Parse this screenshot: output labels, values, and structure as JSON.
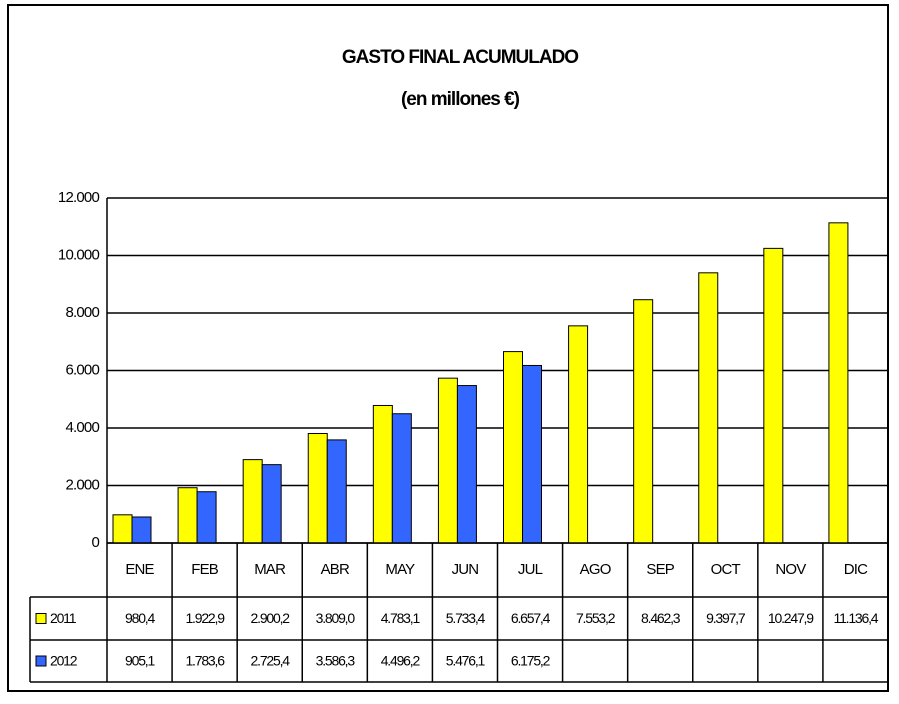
{
  "chart_data": {
    "type": "bar",
    "title": "GASTO FINAL ACUMULADO",
    "subtitle": "(en millones €)",
    "categories": [
      "ENE",
      "FEB",
      "MAR",
      "ABR",
      "MAY",
      "JUN",
      "JUL",
      "AGO",
      "SEP",
      "OCT",
      "NOV",
      "DIC"
    ],
    "series": [
      {
        "name": "2011",
        "color": "#ffff00",
        "values": [
          980.4,
          1922.9,
          2900.2,
          3809.0,
          4783.1,
          5733.4,
          6657.4,
          7553.2,
          8462.3,
          9397.7,
          10247.9,
          11136.4
        ],
        "value_labels": [
          "980,4",
          "1.922,9",
          "2.900,2",
          "3.809,0",
          "4.783,1",
          "5.733,4",
          "6.657,4",
          "7.553,2",
          "8.462,3",
          "9.397,7",
          "10.247,9",
          "11.136,4"
        ]
      },
      {
        "name": "2012",
        "color": "#3366ff",
        "values": [
          905.1,
          1783.6,
          2725.4,
          3586.3,
          4496.2,
          5476.1,
          6175.2,
          null,
          null,
          null,
          null,
          null
        ],
        "value_labels": [
          "905,1",
          "1.783,6",
          "2.725,4",
          "3.586,3",
          "4.496,2",
          "5.476,1",
          "6.175,2",
          null,
          null,
          null,
          null,
          null
        ]
      }
    ],
    "ylim": [
      0,
      12000
    ],
    "yticks": [
      0,
      {
        "value": 2000,
        "label": "2.000"
      },
      {
        "value": 4000,
        "label": "4.000"
      },
      {
        "value": 6000,
        "label": "6.000"
      },
      {
        "value": 8000,
        "label": "8.000"
      },
      {
        "value": 10000,
        "label": "10.000"
      },
      {
        "value": 12000,
        "label": "12.000"
      }
    ],
    "grid": true
  }
}
